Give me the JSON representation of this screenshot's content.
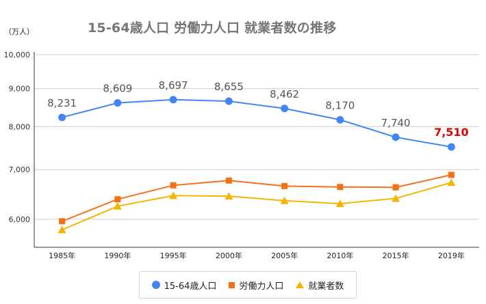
{
  "title": "15-64歳人口 労働力人口 就業者数の推移",
  "unit": "（万人）",
  "chart_data": {
    "type": "line",
    "title": "15-64歳人口 労働力人口 就業者数の推移",
    "ylabel": "（万人）",
    "xlabel": "",
    "scale": "log",
    "ylim": [
      5500,
      10000
    ],
    "yticks": [
      6000,
      7000,
      8000,
      9000,
      10000
    ],
    "ytick_labels": [
      "6,000",
      "7,000",
      "8,000",
      "9,000",
      "10,000"
    ],
    "categories": [
      "1985年",
      "1990年",
      "1995年",
      "2000年",
      "2005年",
      "2010年",
      "2015年",
      "2019年"
    ],
    "grid": true,
    "legend_position": "bottom",
    "series": [
      {
        "name": "15-64歳人口",
        "marker": "circle",
        "color": "#4285f4",
        "values": [
          8231,
          8609,
          8697,
          8655,
          8462,
          8170,
          7740,
          7510
        ],
        "labels": [
          "8,231",
          "8,609",
          "8,697",
          "8,655",
          "8,462",
          "8,170",
          "7,740",
          "7,510"
        ],
        "highlight_label_color": "#e00000"
      },
      {
        "name": "労働力人口",
        "marker": "square",
        "color": "#f46f16",
        "values": [
          5963,
          6384,
          6666,
          6766,
          6651,
          6632,
          6625,
          6886
        ]
      },
      {
        "name": "就業者数",
        "marker": "triangle",
        "color": "#f5b400",
        "values": [
          5807,
          6249,
          6457,
          6446,
          6356,
          6298,
          6401,
          6724
        ]
      }
    ]
  }
}
